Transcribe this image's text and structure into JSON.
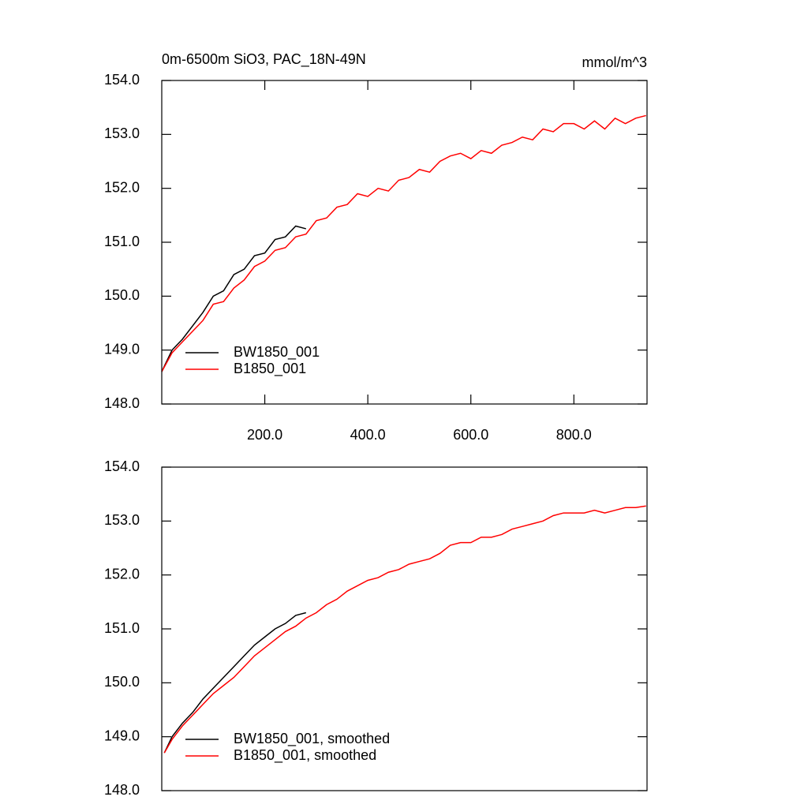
{
  "chart_data": [
    {
      "type": "line",
      "title": "0m-6500m SiO3, PAC_18N-49N",
      "units": "mmol/m^3",
      "xlim": [
        0,
        942
      ],
      "ylim": [
        148,
        154
      ],
      "xticks": [
        {
          "value": 200,
          "label": "200.0"
        },
        {
          "value": 400,
          "label": "400.0"
        },
        {
          "value": 600,
          "label": "600.0"
        },
        {
          "value": 800,
          "label": "800.0"
        }
      ],
      "yticks": [
        {
          "value": 148,
          "label": "148.0"
        },
        {
          "value": 149,
          "label": "149.0"
        },
        {
          "value": 150,
          "label": "150.0"
        },
        {
          "value": 151,
          "label": "151.0"
        },
        {
          "value": 152,
          "label": "152.0"
        },
        {
          "value": 153,
          "label": "153.0"
        },
        {
          "value": 154,
          "label": "154.0"
        }
      ],
      "legend": "lower left",
      "series": [
        {
          "name": "BW1850_001",
          "color": "#000000",
          "x": [
            0,
            20,
            40,
            60,
            80,
            100,
            120,
            140,
            160,
            180,
            200,
            220,
            240,
            260,
            280
          ],
          "values": [
            148.6,
            149.0,
            149.2,
            149.45,
            149.7,
            150.0,
            150.1,
            150.4,
            150.5,
            150.75,
            150.8,
            151.05,
            151.1,
            151.3,
            151.25
          ]
        },
        {
          "name": "B1850_001",
          "color": "#ff0000",
          "x": [
            0,
            20,
            40,
            60,
            80,
            100,
            120,
            140,
            160,
            180,
            200,
            220,
            240,
            260,
            280,
            300,
            320,
            340,
            360,
            380,
            400,
            420,
            440,
            460,
            480,
            500,
            520,
            540,
            560,
            580,
            600,
            620,
            640,
            660,
            680,
            700,
            720,
            740,
            760,
            780,
            800,
            820,
            840,
            860,
            880,
            900,
            920,
            940
          ],
          "values": [
            148.6,
            148.95,
            149.15,
            149.35,
            149.55,
            149.85,
            149.9,
            150.15,
            150.3,
            150.55,
            150.65,
            150.85,
            150.9,
            151.1,
            151.15,
            151.4,
            151.45,
            151.65,
            151.7,
            151.9,
            151.85,
            152.0,
            151.95,
            152.15,
            152.2,
            152.35,
            152.3,
            152.5,
            152.6,
            152.65,
            152.55,
            152.7,
            152.65,
            152.8,
            152.85,
            152.95,
            152.9,
            153.1,
            153.05,
            153.2,
            153.2,
            153.1,
            153.25,
            153.1,
            153.3,
            153.2,
            153.3,
            153.35
          ]
        }
      ]
    },
    {
      "type": "line",
      "xlim": [
        0,
        942
      ],
      "ylim": [
        148,
        154
      ],
      "yticks": [
        {
          "value": 148,
          "label": "148.0"
        },
        {
          "value": 149,
          "label": "149.0"
        },
        {
          "value": 150,
          "label": "150.0"
        },
        {
          "value": 151,
          "label": "151.0"
        },
        {
          "value": 152,
          "label": "152.0"
        },
        {
          "value": 153,
          "label": "153.0"
        },
        {
          "value": 154,
          "label": "154.0"
        }
      ],
      "legend": "lower left",
      "series": [
        {
          "name": "BW1850_001, smoothed",
          "color": "#000000",
          "x": [
            5,
            20,
            40,
            60,
            80,
            100,
            120,
            140,
            160,
            180,
            200,
            220,
            240,
            260,
            280
          ],
          "values": [
            148.7,
            149.0,
            149.25,
            149.45,
            149.7,
            149.9,
            150.1,
            150.3,
            150.5,
            150.7,
            150.85,
            151.0,
            151.1,
            151.25,
            151.3
          ]
        },
        {
          "name": "B1850_001, smoothed",
          "color": "#ff0000",
          "x": [
            5,
            20,
            40,
            60,
            80,
            100,
            120,
            140,
            160,
            180,
            200,
            220,
            240,
            260,
            280,
            300,
            320,
            340,
            360,
            380,
            400,
            420,
            440,
            460,
            480,
            500,
            520,
            540,
            560,
            580,
            600,
            620,
            640,
            660,
            680,
            700,
            720,
            740,
            760,
            780,
            800,
            820,
            840,
            860,
            880,
            900,
            920,
            940
          ],
          "values": [
            148.7,
            148.95,
            149.2,
            149.4,
            149.6,
            149.8,
            149.95,
            150.1,
            150.3,
            150.5,
            150.65,
            150.8,
            150.95,
            151.05,
            151.2,
            151.3,
            151.45,
            151.55,
            151.7,
            151.8,
            151.9,
            151.95,
            152.05,
            152.1,
            152.2,
            152.25,
            152.3,
            152.4,
            152.55,
            152.6,
            152.6,
            152.7,
            152.7,
            152.75,
            152.85,
            152.9,
            152.95,
            153.0,
            153.1,
            153.15,
            153.15,
            153.15,
            153.2,
            153.15,
            153.2,
            153.25,
            153.25,
            153.28
          ]
        }
      ]
    }
  ]
}
